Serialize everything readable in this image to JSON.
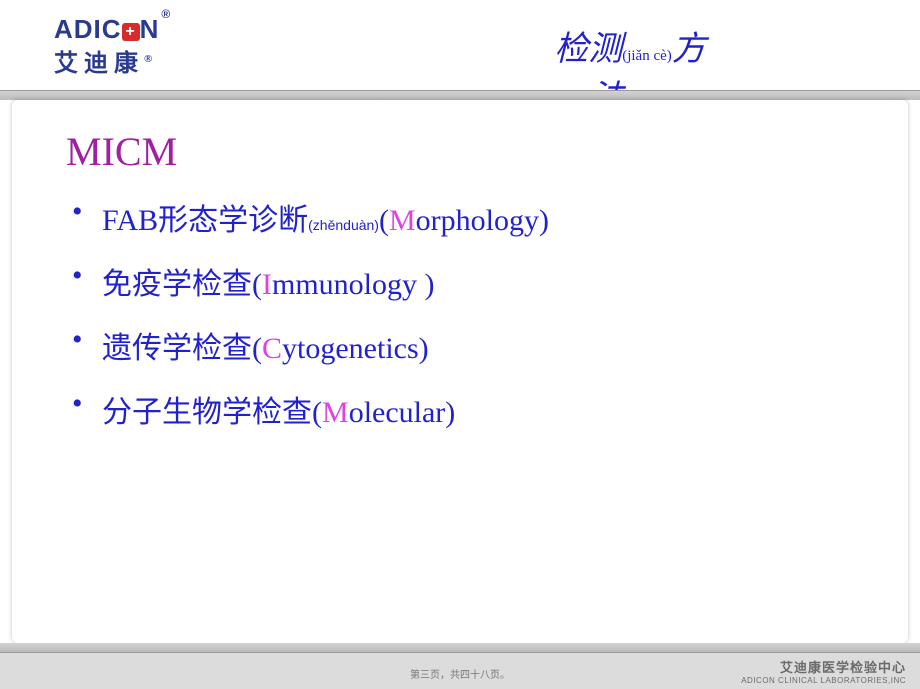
{
  "logo": {
    "latin_pre": "ADIC",
    "latin_post": "N",
    "registered": "®",
    "cn": "艾迪康",
    "cn_registered": "®"
  },
  "title": {
    "part1": "检测",
    "pinyin": "(jiǎn cè)",
    "part2": "方",
    "line2": "法"
  },
  "heading": "MICM",
  "items": [
    {
      "pre": "FAB形态学诊断",
      "pinyin": "(zhěnduàn)",
      "open": "(",
      "accent": "M",
      "rest": "orphology)"
    },
    {
      "pre": "免疫学检查(",
      "pinyin": "",
      "open": "",
      "accent": "I",
      "rest": "mmunology )"
    },
    {
      "pre": "遗传学检查(",
      "pinyin": "",
      "open": "",
      "accent": "C",
      "rest": "ytogenetics)"
    },
    {
      "pre": "分子生物学检查(",
      "pinyin": "",
      "open": "",
      "accent": "M",
      "rest": "olecular)"
    }
  ],
  "footer": {
    "cn": "艾迪康医学检验中心",
    "en": "ADICON CLINICAL LABORATORIES,INC"
  },
  "page": "第三页，共四十八页。",
  "colors": {
    "brand_blue": "#2a3b8f",
    "link_blue": "#2222cc",
    "accent_magenta": "#e041e0",
    "heading_purple": "#a020a0",
    "plus_red": "#d82b2b",
    "band_gray": "#c8c8c8",
    "footer_gray": "#dcdcdc"
  }
}
